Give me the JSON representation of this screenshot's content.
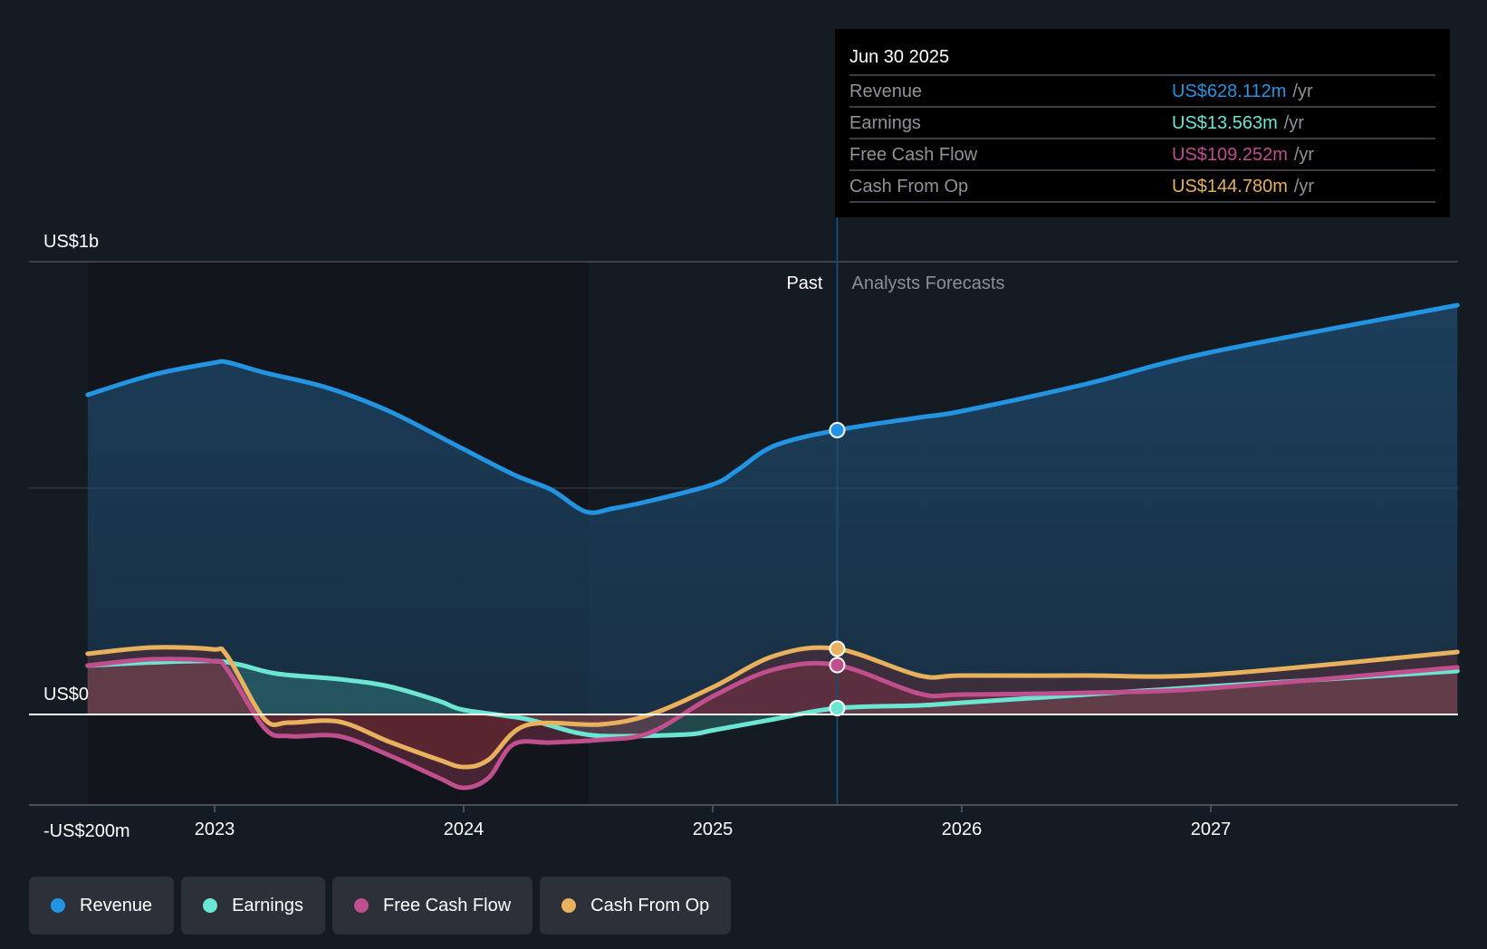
{
  "tooltip": {
    "date": "Jun 30 2025",
    "rows": [
      {
        "label": "Revenue",
        "value": "US$628.112m",
        "unit": "/yr",
        "color": "#2394e1"
      },
      {
        "label": "Earnings",
        "value": "US$13.563m",
        "unit": "/yr",
        "color": "#6ce5d3"
      },
      {
        "label": "Free Cash Flow",
        "value": "US$109.252m",
        "unit": "/yr",
        "color": "#c04f8d"
      },
      {
        "label": "Cash From Op",
        "value": "US$144.780m",
        "unit": "/yr",
        "color": "#e8b15e"
      }
    ]
  },
  "legend": [
    {
      "label": "Revenue",
      "color": "#2394e1"
    },
    {
      "label": "Earnings",
      "color": "#6ce5d3"
    },
    {
      "label": "Free Cash Flow",
      "color": "#c04f8d"
    },
    {
      "label": "Cash From Op",
      "color": "#e8b15e"
    }
  ],
  "chart_data": {
    "type": "area",
    "title": "",
    "xlabel": "",
    "ylabel": "",
    "units": "US$ millions",
    "xlim": [
      2022.49,
      2027.99
    ],
    "ylim": [
      -200,
      1000
    ],
    "y_ticks": [
      {
        "value": 1000,
        "label": "US$1b"
      },
      {
        "value": 500,
        "label": ""
      },
      {
        "value": 0,
        "label": "US$0"
      },
      {
        "value": -200,
        "label": "-US$200m"
      }
    ],
    "x_ticks": [
      {
        "value": 2023,
        "label": "2023"
      },
      {
        "value": 2024,
        "label": "2024"
      },
      {
        "value": 2025,
        "label": "2025"
      },
      {
        "value": 2026,
        "label": "2026"
      },
      {
        "value": 2027,
        "label": "2027"
      }
    ],
    "grid": true,
    "legend_position": "bottom-left",
    "zones": {
      "past_label": "Past",
      "forecast_label": "Analysts Forecasts",
      "highlight_start": 2024.5,
      "divider": 2025.5
    },
    "highlight_date": 2025.5,
    "series": [
      {
        "name": "Revenue",
        "color": "#2394e1",
        "points": [
          [
            2022.49,
            706
          ],
          [
            2022.75,
            750
          ],
          [
            2022.99,
            776
          ],
          [
            2023.05,
            778
          ],
          [
            2023.2,
            755
          ],
          [
            2023.45,
            722
          ],
          [
            2023.7,
            670
          ],
          [
            2023.95,
            600
          ],
          [
            2024.2,
            530
          ],
          [
            2024.35,
            497
          ],
          [
            2024.49,
            448
          ],
          [
            2024.6,
            455
          ],
          [
            2024.75,
            472
          ],
          [
            2025.0,
            508
          ],
          [
            2025.1,
            540
          ],
          [
            2025.25,
            594
          ],
          [
            2025.5,
            628
          ],
          [
            2025.83,
            656
          ],
          [
            2026.0,
            670
          ],
          [
            2026.5,
            730
          ],
          [
            2027.0,
            800
          ],
          [
            2027.99,
            904
          ]
        ]
      },
      {
        "name": "Earnings",
        "color": "#6ce5d3",
        "points": [
          [
            2022.49,
            108
          ],
          [
            2022.75,
            115
          ],
          [
            2022.99,
            118
          ],
          [
            2023.1,
            110
          ],
          [
            2023.25,
            90
          ],
          [
            2023.5,
            78
          ],
          [
            2023.7,
            62
          ],
          [
            2023.9,
            30
          ],
          [
            2024.0,
            10
          ],
          [
            2024.25,
            -10
          ],
          [
            2024.45,
            -40
          ],
          [
            2024.6,
            -48
          ],
          [
            2024.9,
            -44
          ],
          [
            2025.0,
            -35
          ],
          [
            2025.25,
            -10
          ],
          [
            2025.5,
            14
          ],
          [
            2025.83,
            20
          ],
          [
            2026.0,
            26
          ],
          [
            2026.5,
            44
          ],
          [
            2027.0,
            62
          ],
          [
            2027.99,
            96
          ]
        ]
      },
      {
        "name": "Free Cash Flow",
        "color": "#c04f8d",
        "points": [
          [
            2022.49,
            108
          ],
          [
            2022.75,
            122
          ],
          [
            2022.99,
            118
          ],
          [
            2023.05,
            100
          ],
          [
            2023.2,
            -30
          ],
          [
            2023.3,
            -48
          ],
          [
            2023.5,
            -48
          ],
          [
            2023.7,
            -90
          ],
          [
            2023.9,
            -140
          ],
          [
            2024.0,
            -162
          ],
          [
            2024.1,
            -140
          ],
          [
            2024.2,
            -66
          ],
          [
            2024.35,
            -62
          ],
          [
            2024.55,
            -56
          ],
          [
            2024.75,
            -40
          ],
          [
            2025.0,
            40
          ],
          [
            2025.25,
            100
          ],
          [
            2025.5,
            109
          ],
          [
            2025.83,
            46
          ],
          [
            2026.0,
            44
          ],
          [
            2026.5,
            48
          ],
          [
            2027.0,
            58
          ],
          [
            2027.99,
            104
          ]
        ]
      },
      {
        "name": "Cash From Op",
        "color": "#e8b15e",
        "points": [
          [
            2022.49,
            134
          ],
          [
            2022.75,
            148
          ],
          [
            2022.99,
            144
          ],
          [
            2023.05,
            130
          ],
          [
            2023.2,
            -10
          ],
          [
            2023.3,
            -18
          ],
          [
            2023.5,
            -16
          ],
          [
            2023.7,
            -60
          ],
          [
            2023.9,
            -100
          ],
          [
            2024.0,
            -116
          ],
          [
            2024.1,
            -100
          ],
          [
            2024.25,
            -24
          ],
          [
            2024.55,
            -22
          ],
          [
            2024.75,
            0
          ],
          [
            2025.0,
            60
          ],
          [
            2025.25,
            130
          ],
          [
            2025.5,
            145
          ],
          [
            2025.83,
            86
          ],
          [
            2026.0,
            86
          ],
          [
            2026.5,
            86
          ],
          [
            2027.0,
            88
          ],
          [
            2027.99,
            138
          ]
        ]
      }
    ]
  }
}
